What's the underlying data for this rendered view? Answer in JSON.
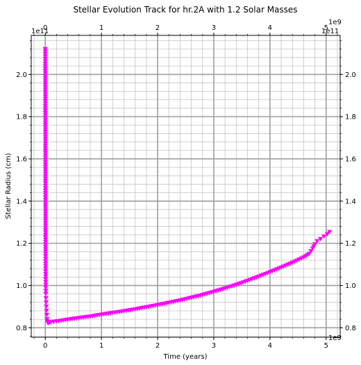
{
  "chart_data": {
    "type": "scatter",
    "title": "Stellar Evolution Track for hr.2A with 1.2 Solar Masses",
    "xlabel": "Time (years)",
    "ylabel": "Stellar Radius (cm)",
    "x_scale_label": "1e9",
    "y_scale_label": "1e11",
    "xlim": [
      -0.25,
      5.25
    ],
    "ylim": [
      0.755,
      2.185
    ],
    "x_ticks": [
      0,
      1,
      2,
      3,
      4,
      5
    ],
    "y_ticks": [
      0.8,
      1.0,
      1.2,
      1.4,
      1.6,
      1.8,
      2.0
    ],
    "x_tick_labels": [
      "0",
      "1",
      "2",
      "3",
      "4",
      "5"
    ],
    "y_tick_labels": [
      "0.8",
      "1.0",
      "1.2",
      "1.4",
      "1.6",
      "1.8",
      "2.0"
    ],
    "grid": true,
    "marker": "triangle-down",
    "color": "#ff00ff",
    "series": [
      {
        "x": [
          0.0,
          0.0,
          0.001,
          0.001,
          0.002,
          0.002,
          0.003,
          0.003,
          0.004,
          0.004,
          0.005,
          0.006,
          0.007,
          0.008,
          0.01,
          0.012,
          0.015,
          0.018,
          0.022,
          0.026,
          0.03,
          0.035,
          0.04,
          0.05,
          0.07,
          0.1,
          0.2,
          0.4,
          0.6,
          0.8,
          1.0,
          1.2,
          1.4,
          1.6,
          1.8,
          2.0,
          2.2,
          2.4,
          2.6,
          2.8,
          3.0,
          3.2,
          3.4,
          3.6,
          3.8,
          4.0,
          4.2,
          4.4,
          4.6,
          4.7,
          4.76,
          4.8,
          4.84,
          4.9,
          4.96,
          5.02,
          5.06
        ],
        "y": [
          2.12,
          2.05,
          1.95,
          1.85,
          1.75,
          1.65,
          1.55,
          1.45,
          1.35,
          1.25,
          1.15,
          1.08,
          1.03,
          0.99,
          0.96,
          0.94,
          0.92,
          0.9,
          0.88,
          0.86,
          0.84,
          0.83,
          0.825,
          0.822,
          0.824,
          0.826,
          0.83,
          0.838,
          0.846,
          0.853,
          0.862,
          0.87,
          0.878,
          0.887,
          0.897,
          0.907,
          0.918,
          0.929,
          0.942,
          0.955,
          0.97,
          0.986,
          1.003,
          1.022,
          1.042,
          1.063,
          1.085,
          1.108,
          1.133,
          1.15,
          1.175,
          1.195,
          1.21,
          1.22,
          1.232,
          1.243,
          1.253
        ]
      }
    ]
  }
}
